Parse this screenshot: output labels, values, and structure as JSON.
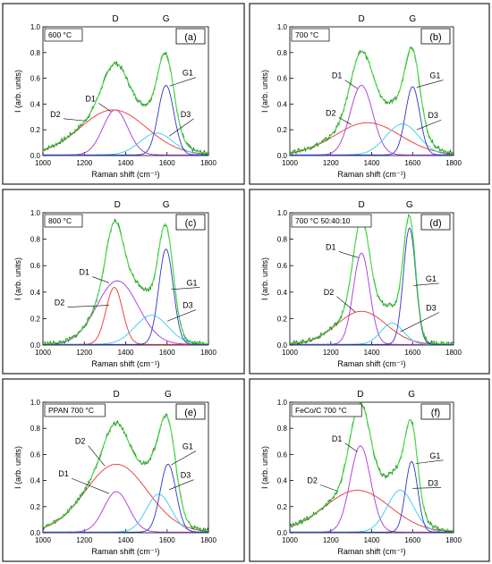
{
  "chart_data": [
    {
      "type": "line",
      "id": "a",
      "letter": "(a)",
      "condition": "600 °C",
      "xlabel": "Raman shift (cm⁻¹)",
      "ylabel": "I (arb. units)",
      "xlim": [
        1000,
        1800
      ],
      "ylim": [
        0,
        1.0
      ],
      "xticks": [
        1000,
        1200,
        1400,
        1600,
        1800
      ],
      "yticks": [
        0.0,
        0.2,
        0.4,
        0.6,
        0.8,
        1.0
      ],
      "peak_labels": [
        "D",
        "G"
      ],
      "components": [
        {
          "name": "D1",
          "center": 1350,
          "amplitude": 0.35,
          "width": 60,
          "color": "#aa33dd"
        },
        {
          "name": "D2",
          "center": 1340,
          "amplitude": 0.35,
          "width": 160,
          "color": "#ee3333"
        },
        {
          "name": "D3",
          "center": 1550,
          "amplitude": 0.17,
          "width": 80,
          "color": "#33ccee"
        },
        {
          "name": "G1",
          "center": 1595,
          "amplitude": 0.54,
          "width": 38,
          "color": "#3333cc"
        }
      ],
      "labels": [
        {
          "text": "D1",
          "x": 1230,
          "y": 0.42,
          "tx": 1330,
          "ty": 0.34
        },
        {
          "text": "D2",
          "x": 1060,
          "y": 0.3,
          "tx": 1200,
          "ty": 0.27
        },
        {
          "text": "D3",
          "x": 1690,
          "y": 0.3,
          "tx": 1610,
          "ty": 0.15
        },
        {
          "text": "G1",
          "x": 1700,
          "y": 0.62,
          "tx": 1612,
          "ty": 0.54
        }
      ]
    },
    {
      "type": "line",
      "id": "b",
      "letter": "(b)",
      "condition": "700 °C",
      "xlabel": "Raman shift (cm⁻¹)",
      "ylabel": "I (arb. units)",
      "xlim": [
        1000,
        1800
      ],
      "ylim": [
        0,
        1.0
      ],
      "xticks": [
        1000,
        1200,
        1400,
        1600,
        1800
      ],
      "yticks": [
        0.0,
        0.2,
        0.4,
        0.6,
        0.8,
        1.0
      ],
      "peak_labels": [
        "D",
        "G"
      ],
      "components": [
        {
          "name": "D1",
          "center": 1350,
          "amplitude": 0.54,
          "width": 55,
          "color": "#aa33dd"
        },
        {
          "name": "D2",
          "center": 1380,
          "amplitude": 0.25,
          "width": 160,
          "color": "#ee3333"
        },
        {
          "name": "D3",
          "center": 1550,
          "amplitude": 0.24,
          "width": 80,
          "color": "#33ccee"
        },
        {
          "name": "G1",
          "center": 1600,
          "amplitude": 0.53,
          "width": 35,
          "color": "#3333cc"
        }
      ],
      "labels": [
        {
          "text": "D1",
          "x": 1230,
          "y": 0.6,
          "tx": 1330,
          "ty": 0.52
        },
        {
          "text": "D2",
          "x": 1200,
          "y": 0.31,
          "tx": 1300,
          "ty": 0.24
        },
        {
          "text": "D3",
          "x": 1700,
          "y": 0.29,
          "tx": 1620,
          "ty": 0.2
        },
        {
          "text": "G1",
          "x": 1710,
          "y": 0.6,
          "tx": 1620,
          "ty": 0.53
        }
      ]
    },
    {
      "type": "line",
      "id": "c",
      "letter": "(c)",
      "condition": "800 °C",
      "xlabel": "Raman shift (cm⁻¹)",
      "ylabel": "I (arb. units)",
      "xlim": [
        1000,
        1800
      ],
      "ylim": [
        0,
        1.0
      ],
      "xticks": [
        1000,
        1200,
        1400,
        1600,
        1800
      ],
      "yticks": [
        0.0,
        0.2,
        0.4,
        0.6,
        0.8,
        1.0
      ],
      "peak_labels": [
        "D",
        "G"
      ],
      "components": [
        {
          "name": "D1",
          "center": 1360,
          "amplitude": 0.48,
          "width": 100,
          "color": "#aa33dd"
        },
        {
          "name": "D2",
          "center": 1345,
          "amplitude": 0.43,
          "width": 40,
          "color": "#ee3333"
        },
        {
          "name": "D3",
          "center": 1525,
          "amplitude": 0.22,
          "width": 80,
          "color": "#33ccee"
        },
        {
          "name": "G1",
          "center": 1595,
          "amplitude": 0.72,
          "width": 35,
          "color": "#3333cc"
        }
      ],
      "labels": [
        {
          "text": "D1",
          "x": 1200,
          "y": 0.53,
          "tx": 1320,
          "ty": 0.47
        },
        {
          "text": "D2",
          "x": 1080,
          "y": 0.3,
          "tx": 1320,
          "ty": 0.3
        },
        {
          "text": "D3",
          "x": 1700,
          "y": 0.28,
          "tx": 1600,
          "ty": 0.18
        },
        {
          "text": "G1",
          "x": 1720,
          "y": 0.45,
          "tx": 1620,
          "ty": 0.42
        }
      ]
    },
    {
      "type": "line",
      "id": "d",
      "letter": "(d)",
      "condition": "700 °C 50:40:10",
      "xlabel": "Raman shift (cm⁻¹)",
      "ylabel": "I (arb. units)",
      "xlim": [
        1000,
        1800
      ],
      "ylim": [
        0,
        1.0
      ],
      "xticks": [
        1000,
        1200,
        1400,
        1600,
        1800
      ],
      "yticks": [
        0.0,
        0.2,
        0.4,
        0.6,
        0.8,
        1.0
      ],
      "peak_labels": [
        "D",
        "G"
      ],
      "components": [
        {
          "name": "D1",
          "center": 1350,
          "amplitude": 0.69,
          "width": 40,
          "color": "#aa33dd"
        },
        {
          "name": "D2",
          "center": 1350,
          "amplitude": 0.25,
          "width": 120,
          "color": "#ee3333"
        },
        {
          "name": "D3",
          "center": 1500,
          "amplitude": 0.16,
          "width": 55,
          "color": "#33ccee"
        },
        {
          "name": "G1",
          "center": 1585,
          "amplitude": 0.88,
          "width": 30,
          "color": "#3333cc"
        }
      ],
      "labels": [
        {
          "text": "D1",
          "x": 1200,
          "y": 0.72,
          "tx": 1335,
          "ty": 0.66
        },
        {
          "text": "D2",
          "x": 1190,
          "y": 0.38,
          "tx": 1320,
          "ty": 0.25
        },
        {
          "text": "D3",
          "x": 1690,
          "y": 0.26,
          "tx": 1540,
          "ty": 0.1
        },
        {
          "text": "G1",
          "x": 1690,
          "y": 0.48,
          "tx": 1605,
          "ty": 0.45
        }
      ]
    },
    {
      "type": "line",
      "id": "e",
      "letter": "(e)",
      "condition": "PPAN 700 °C",
      "xlabel": "Raman shift (cm⁻¹)",
      "ylabel": "I (arb. units)",
      "xlim": [
        1000,
        1800
      ],
      "ylim": [
        0,
        1.0
      ],
      "xticks": [
        1000,
        1200,
        1400,
        1600,
        1800
      ],
      "yticks": [
        0.0,
        0.2,
        0.4,
        0.6,
        0.8,
        1.0
      ],
      "peak_labels": [
        "D",
        "G"
      ],
      "components": [
        {
          "name": "D1",
          "center": 1355,
          "amplitude": 0.31,
          "width": 60,
          "color": "#aa33dd"
        },
        {
          "name": "D2",
          "center": 1355,
          "amplitude": 0.52,
          "width": 150,
          "color": "#ee3333"
        },
        {
          "name": "D3",
          "center": 1560,
          "amplitude": 0.29,
          "width": 60,
          "color": "#33ccee"
        },
        {
          "name": "G1",
          "center": 1605,
          "amplitude": 0.52,
          "width": 38,
          "color": "#3333cc"
        }
      ],
      "labels": [
        {
          "text": "D2",
          "x": 1180,
          "y": 0.68,
          "tx": 1300,
          "ty": 0.51
        },
        {
          "text": "D1",
          "x": 1100,
          "y": 0.43,
          "tx": 1320,
          "ty": 0.3
        },
        {
          "text": "D3",
          "x": 1690,
          "y": 0.42,
          "tx": 1610,
          "ty": 0.33
        },
        {
          "text": "G1",
          "x": 1700,
          "y": 0.64,
          "tx": 1620,
          "ty": 0.52
        }
      ]
    },
    {
      "type": "line",
      "id": "f",
      "letter": "(f)",
      "condition": "FeCo/C 700 °C",
      "xlabel": "Raman shift (cm⁻¹)",
      "ylabel": "I (arb. units)",
      "xlim": [
        1000,
        1800
      ],
      "ylim": [
        0,
        1.0
      ],
      "xticks": [
        1000,
        1200,
        1400,
        1600,
        1800
      ],
      "yticks": [
        0.0,
        0.2,
        0.4,
        0.6,
        0.8,
        1.0
      ],
      "peak_labels": [
        "D",
        "G"
      ],
      "components": [
        {
          "name": "D1",
          "center": 1345,
          "amplitude": 0.66,
          "width": 50,
          "color": "#aa33dd"
        },
        {
          "name": "D2",
          "center": 1330,
          "amplitude": 0.32,
          "width": 160,
          "color": "#ee3333"
        },
        {
          "name": "D3",
          "center": 1540,
          "amplitude": 0.32,
          "width": 65,
          "color": "#33ccee"
        },
        {
          "name": "G1",
          "center": 1595,
          "amplitude": 0.54,
          "width": 30,
          "color": "#3333cc"
        }
      ],
      "labels": [
        {
          "text": "D1",
          "x": 1230,
          "y": 0.7,
          "tx": 1330,
          "ty": 0.62
        },
        {
          "text": "D2",
          "x": 1110,
          "y": 0.38,
          "tx": 1230,
          "ty": 0.32
        },
        {
          "text": "D3",
          "x": 1700,
          "y": 0.36,
          "tx": 1600,
          "ty": 0.34
        },
        {
          "text": "G1",
          "x": 1710,
          "y": 0.57,
          "tx": 1615,
          "ty": 0.53
        }
      ]
    }
  ]
}
